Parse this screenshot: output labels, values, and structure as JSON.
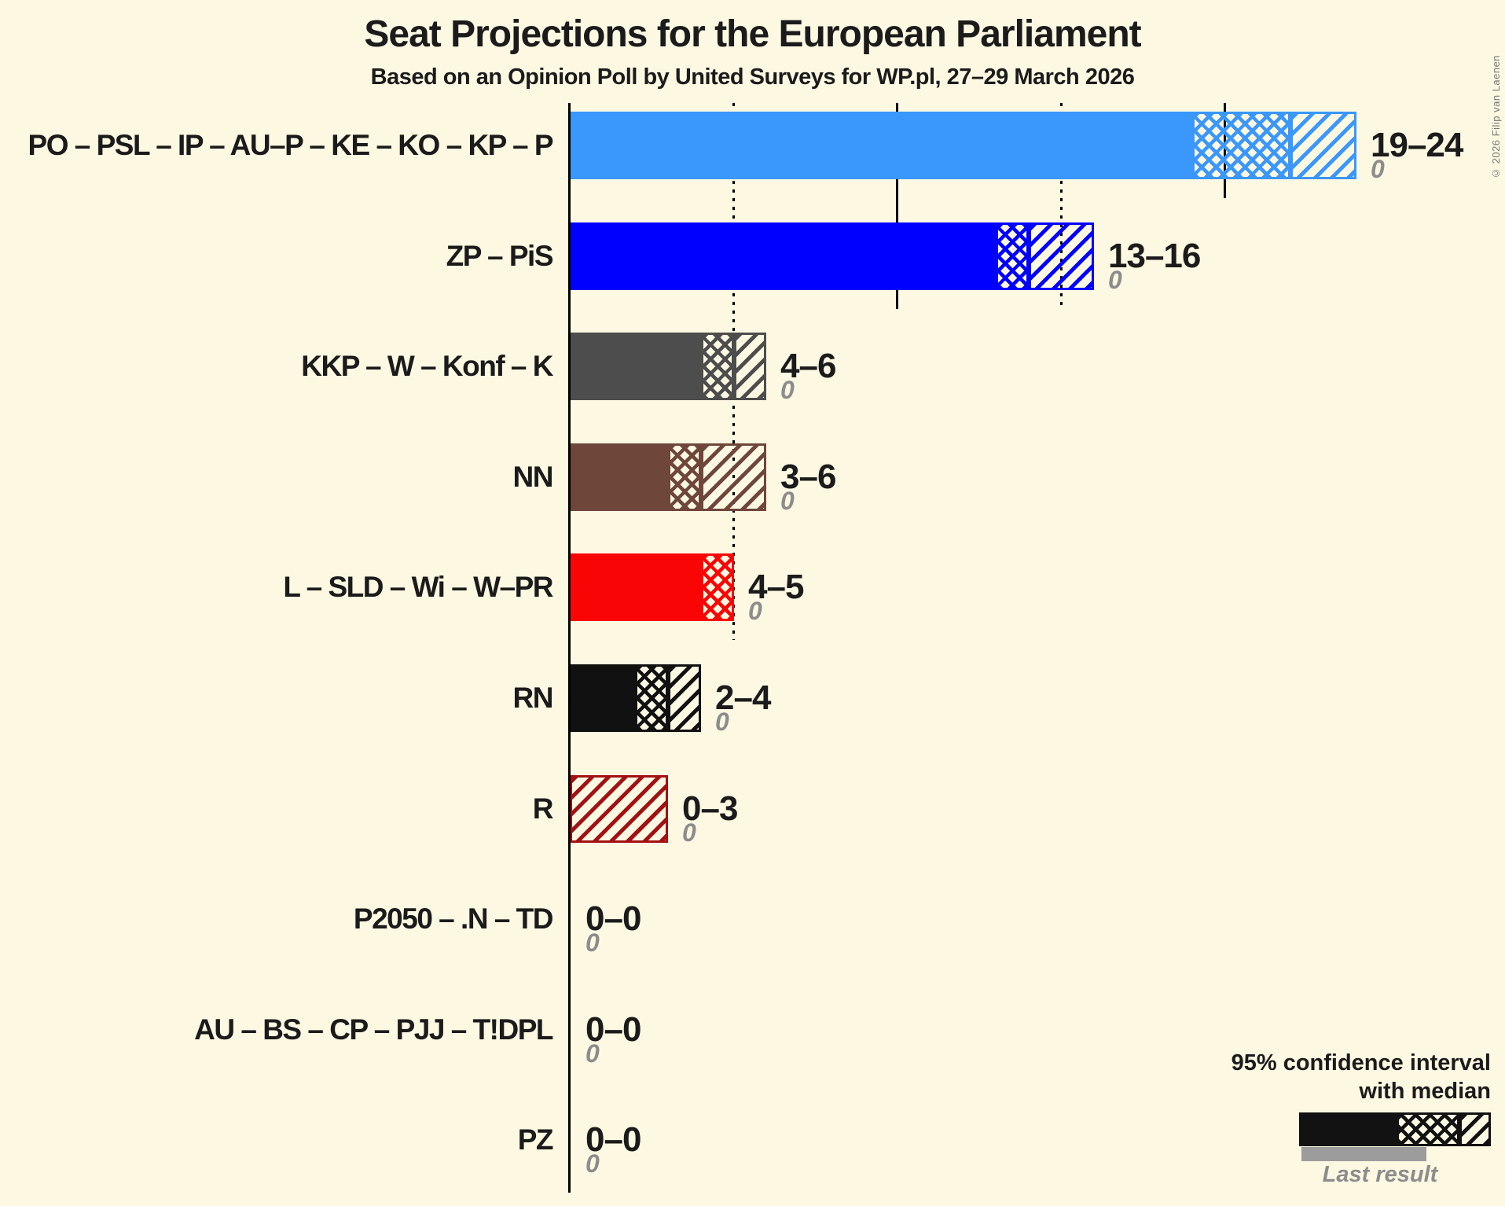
{
  "title": "Seat Projections for the European Parliament",
  "subtitle": "Based on an Opinion Poll by United Surveys for WP.pl, 27–29 March 2026",
  "copyright": "© 2026 Filip van Laenen",
  "legend": {
    "title_line1": "95% confidence interval",
    "title_line2": "with median",
    "last_result": "Last result"
  },
  "colors": {
    "background": "#FDF8E2",
    "text": "#1B1B1B",
    "muted": "#8C8C8C",
    "axis": "#000000",
    "legend_sample": "#121212",
    "legend_last_result_bar": "#9C9C9C"
  },
  "chart_data": {
    "type": "bar",
    "orientation": "horizontal",
    "unit": "seats",
    "x_axis": {
      "min": 0,
      "max": 24,
      "gridlines": [
        {
          "value": 5,
          "style": "dotted"
        },
        {
          "value": 10,
          "style": "solid"
        },
        {
          "value": 15,
          "style": "dotted"
        },
        {
          "value": 20,
          "style": "solid"
        }
      ]
    },
    "parties": [
      {
        "label": "PO – PSL – IP – AU–P – KE – KO – KP – P",
        "ci_low": 19,
        "median": 22,
        "ci_high": 24,
        "last_result": 0,
        "range_label": "19–24",
        "last_result_label": "0",
        "color": "#3A97FC"
      },
      {
        "label": "ZP – PiS",
        "ci_low": 13,
        "median": 14,
        "ci_high": 16,
        "last_result": 0,
        "range_label": "13–16",
        "last_result_label": "0",
        "color": "#0000FE"
      },
      {
        "label": "KKP – W – Konf – K",
        "ci_low": 4,
        "median": 5,
        "ci_high": 6,
        "last_result": 0,
        "range_label": "4–6",
        "last_result_label": "0",
        "color": "#4D4D4D"
      },
      {
        "label": "NN",
        "ci_low": 3,
        "median": 4,
        "ci_high": 6,
        "last_result": 0,
        "range_label": "3–6",
        "last_result_label": "0",
        "color": "#6F463A"
      },
      {
        "label": "L – SLD – Wi – W–PR",
        "ci_low": 4,
        "median": 5,
        "ci_high": 5,
        "last_result": 0,
        "range_label": "4–5",
        "last_result_label": "0",
        "color": "#FA0505"
      },
      {
        "label": "RN",
        "ci_low": 2,
        "median": 3,
        "ci_high": 4,
        "last_result": 0,
        "range_label": "2–4",
        "last_result_label": "0",
        "color": "#111111"
      },
      {
        "label": "R",
        "ci_low": 0,
        "median": 0,
        "ci_high": 3,
        "last_result": 0,
        "range_label": "0–3",
        "last_result_label": "0",
        "color": "#A21113"
      },
      {
        "label": "P2050 – .N – TD",
        "ci_low": 0,
        "median": 0,
        "ci_high": 0,
        "last_result": 0,
        "range_label": "0–0",
        "last_result_label": "0",
        "color": "#1B1B1B"
      },
      {
        "label": "AU – BS – CP – PJJ – T!DPL",
        "ci_low": 0,
        "median": 0,
        "ci_high": 0,
        "last_result": 0,
        "range_label": "0–0",
        "last_result_label": "0",
        "color": "#1B1B1B"
      },
      {
        "label": "PZ",
        "ci_low": 0,
        "median": 0,
        "ci_high": 0,
        "last_result": 0,
        "range_label": "0–0",
        "last_result_label": "0",
        "color": "#1B1B1B"
      }
    ]
  }
}
